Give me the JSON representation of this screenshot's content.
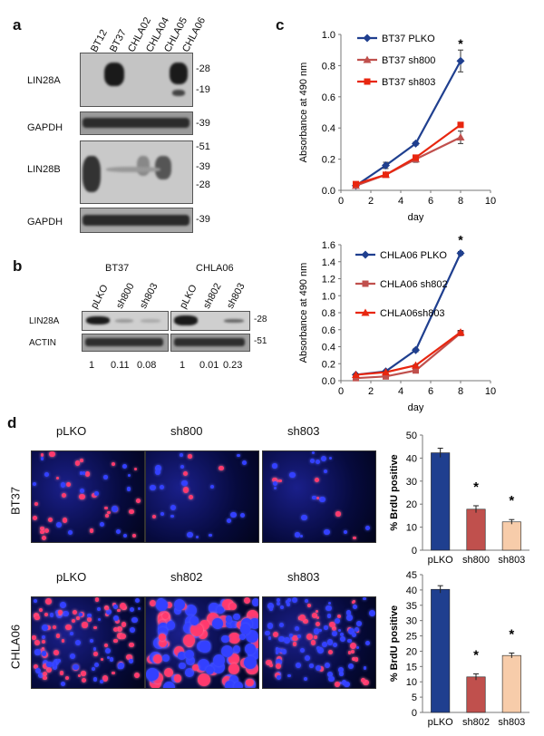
{
  "panels": {
    "a": {
      "letter": "a",
      "lanes": [
        "BT12",
        "BT37",
        "CHLA02",
        "CHLA04",
        "CHLA05",
        "CHLA06"
      ],
      "rows": [
        {
          "label": "LIN28A",
          "markers": [
            "-28",
            "-19"
          ]
        },
        {
          "label": "GAPDH",
          "markers": [
            "-39"
          ]
        },
        {
          "label": "LIN28B",
          "markers": [
            "-51",
            "-39",
            "-28"
          ]
        },
        {
          "label": "GAPDH",
          "markers": [
            "-39"
          ]
        }
      ]
    },
    "b": {
      "letter": "b",
      "groups": [
        {
          "title": "BT37",
          "lanes": [
            "pLKO",
            "sh800",
            "sh803"
          ],
          "quant": [
            "1",
            "0.11",
            "0.08"
          ]
        },
        {
          "title": "CHLA06",
          "lanes": [
            "pLKO",
            "sh802",
            "sh803"
          ],
          "quant": [
            "1",
            "0.01",
            "0.23"
          ]
        }
      ],
      "rows": [
        {
          "label": "LIN28A",
          "marker": "-28"
        },
        {
          "label": "ACTIN",
          "marker": "-51"
        }
      ]
    },
    "c": {
      "letter": "c"
    },
    "d": {
      "letter": "d",
      "rows": [
        {
          "label": "BT37",
          "images": [
            "pLKO",
            "sh800",
            "sh803"
          ]
        },
        {
          "label": "CHLA06",
          "images": [
            "pLKO",
            "sh802",
            "sh803"
          ]
        }
      ]
    }
  },
  "chart_data": [
    {
      "type": "line",
      "xlabel": "day",
      "ylabel": "Absorbance at 490 nm",
      "x": [
        1,
        3,
        5,
        8
      ],
      "xlim": [
        0,
        10
      ],
      "xticks": [
        "0",
        "2",
        "4",
        "6",
        "8",
        "10"
      ],
      "ylim": [
        0,
        1
      ],
      "yticks": [
        "0.0",
        "0.2",
        "0.4",
        "0.6",
        "0.8",
        "1.0"
      ],
      "annotation": "*",
      "series": [
        {
          "name": "BT37 PLKO",
          "values": [
            0.03,
            0.16,
            0.3,
            0.83
          ],
          "errors": [
            0.01,
            0.02,
            0.01,
            0.07
          ],
          "color": "#1f3f8f",
          "marker": "diamond"
        },
        {
          "name": "BT37 sh800",
          "values": [
            0.03,
            0.1,
            0.2,
            0.34
          ],
          "errors": [
            0.01,
            0.01,
            0.02,
            0.04
          ],
          "color": "#c0504d",
          "marker": "triangle"
        },
        {
          "name": "BT37 sh803",
          "values": [
            0.04,
            0.1,
            0.21,
            0.42
          ],
          "errors": [
            0.01,
            0.01,
            0.01,
            0.01
          ],
          "color": "#e8260f",
          "marker": "square"
        }
      ]
    },
    {
      "type": "line",
      "xlabel": "day",
      "ylabel": "Absorbance at 490 nm",
      "x": [
        1,
        3,
        5,
        8
      ],
      "xlim": [
        0,
        10
      ],
      "xticks": [
        "0",
        "2",
        "4",
        "6",
        "8",
        "10"
      ],
      "ylim": [
        0,
        1.6
      ],
      "yticks": [
        "0.0",
        "0.2",
        "0.4",
        "0.6",
        "0.8",
        "1.0",
        "1.2",
        "1.4",
        "1.6"
      ],
      "annotation": "*",
      "series": [
        {
          "name": "CHLA06 PLKO",
          "values": [
            0.07,
            0.11,
            0.36,
            1.5
          ],
          "errors": [
            0.01,
            0.01,
            0.02,
            0.02
          ],
          "color": "#1f3f8f",
          "marker": "diamond"
        },
        {
          "name": "CHLA06 sh802",
          "values": [
            0.03,
            0.05,
            0.12,
            0.56
          ],
          "errors": [
            0.01,
            0.01,
            0.01,
            0.02
          ],
          "color": "#c0504d",
          "marker": "square"
        },
        {
          "name": "CHLA06sh803",
          "values": [
            0.07,
            0.1,
            0.18,
            0.57
          ],
          "errors": [
            0.01,
            0.01,
            0.01,
            0.02
          ],
          "color": "#e8260f",
          "marker": "triangle"
        }
      ]
    },
    {
      "type": "bar",
      "ylabel": "% BrdU positive",
      "categories": [
        "pLKO",
        "sh800",
        "sh803"
      ],
      "values": [
        42.3,
        17.8,
        12.3
      ],
      "errors": [
        2.0,
        1.5,
        1.0
      ],
      "colors": [
        "#1f3f8f",
        "#c0504d",
        "#f7ccaa"
      ],
      "ylim": [
        0,
        50
      ],
      "yticks": [
        "0",
        "10",
        "20",
        "30",
        "40",
        "50"
      ],
      "annotations": [
        "",
        "*",
        "*"
      ]
    },
    {
      "type": "bar",
      "ylabel": "% BrdU positive",
      "categories": [
        "pLKO",
        "sh802",
        "sh803"
      ],
      "values": [
        40.2,
        11.6,
        18.6
      ],
      "errors": [
        1.2,
        1.0,
        0.8
      ],
      "colors": [
        "#1f3f8f",
        "#c0504d",
        "#f7ccaa"
      ],
      "ylim": [
        0,
        45
      ],
      "yticks": [
        "0",
        "5",
        "10",
        "15",
        "20",
        "25",
        "30",
        "35",
        "40",
        "45"
      ],
      "annotations": [
        "",
        "*",
        "*"
      ]
    }
  ]
}
